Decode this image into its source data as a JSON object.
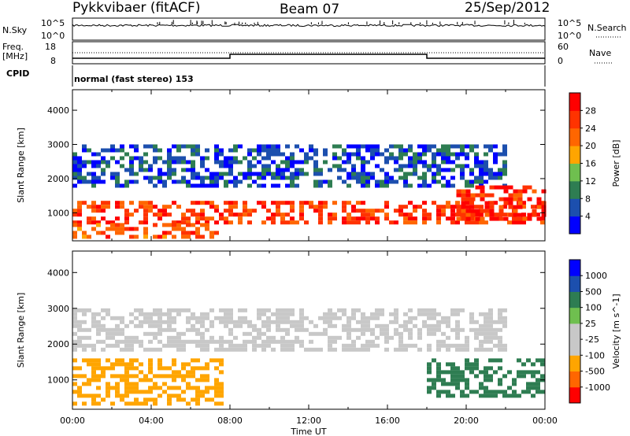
{
  "header": {
    "station": "Pykkvibaer (fitACF)",
    "beam": "Beam 07",
    "date": "25/Sep/2012"
  },
  "top_panels": {
    "noise": {
      "left_label": "N.Sky",
      "right_label": "N.Search",
      "left_ticks": [
        "10^5",
        "10^0"
      ],
      "right_ticks": [
        "10^5",
        "10^0"
      ]
    },
    "freq": {
      "left_label_1": "Freq.",
      "left_label_2": "[MHz]",
      "right_label": "Nave",
      "left_ticks": [
        "18",
        "8"
      ],
      "right_ticks": [
        "60",
        "0"
      ]
    },
    "cpid": {
      "label": "CPID",
      "text": "normal (fast stereo) 153"
    }
  },
  "time_axis": {
    "ticks": [
      "00:00",
      "04:00",
      "08:00",
      "12:00",
      "16:00",
      "20:00",
      "00:00"
    ],
    "label": "Time UT"
  },
  "colors": {
    "power_scale": [
      "#0000ff",
      "#1c4fae",
      "#2e7d52",
      "#6fbf4f",
      "#ffa500",
      "#ff6600",
      "#ff3300",
      "#ff0000"
    ],
    "velocity_scale": [
      "#ff0000",
      "#ff6600",
      "#ffa500",
      "#c8c8c8",
      "#c8c8c8",
      "#6fbf4f",
      "#2e7d52",
      "#1c4fae",
      "#0000ff"
    ],
    "ground_scatter": "#c8c8c8"
  },
  "chart_data": [
    {
      "type": "heatmap",
      "title": "",
      "xlabel": "Time UT",
      "ylabel": "Slant Range [km]",
      "xlim": [
        "00:00",
        "24:00"
      ],
      "ylim": [
        180,
        4600
      ],
      "yticks": [
        "1000",
        "2000",
        "3000",
        "4000"
      ],
      "colorbar": {
        "label": "Power [dB]",
        "range": [
          0,
          32
        ],
        "ticks": [
          "28",
          "24",
          "20",
          "16",
          "12",
          "8",
          "4"
        ]
      },
      "features": [
        {
          "name": "near-range strong echoes",
          "time": [
            "00:00",
            "24:00"
          ],
          "range_km": [
            700,
            1350
          ],
          "value_db": 26
        },
        {
          "name": "early low band",
          "time": [
            "00:00",
            "07:30"
          ],
          "range_km": [
            300,
            700
          ],
          "value_db": 24
        },
        {
          "name": "far-range weak echoes",
          "time": [
            "00:00",
            "22:00"
          ],
          "range_km": [
            1800,
            3000
          ],
          "value_db": 6
        },
        {
          "name": "late intense patch",
          "time": [
            "19:30",
            "24:00"
          ],
          "range_km": [
            800,
            1800
          ],
          "value_db": 28
        }
      ]
    },
    {
      "type": "heatmap",
      "title": "",
      "xlabel": "Time UT",
      "ylabel": "Slant Range [km]",
      "xlim": [
        "00:00",
        "24:00"
      ],
      "ylim": [
        180,
        4600
      ],
      "yticks": [
        "1000",
        "2000",
        "3000",
        "4000"
      ],
      "colorbar": {
        "label": "Velocity [m s^-1]",
        "levels": [
          -1000,
          -500,
          -100,
          -25,
          25,
          100,
          500,
          1000
        ],
        "ticks": [
          "1000",
          "500",
          "100",
          "25",
          "-25",
          "-100",
          "-500",
          "-1000"
        ]
      },
      "features": [
        {
          "name": "ground scatter band",
          "time": [
            "00:00",
            "22:00"
          ],
          "range_km": [
            1800,
            3000
          ],
          "value_ms": 0
        },
        {
          "name": "negative velocities early",
          "time": [
            "00:00",
            "07:30"
          ],
          "range_km": [
            300,
            1600
          ],
          "value_ms": -200
        },
        {
          "name": "positive velocities late",
          "time": [
            "18:00",
            "24:00"
          ],
          "range_km": [
            600,
            1600
          ],
          "value_ms": 200
        }
      ]
    }
  ]
}
